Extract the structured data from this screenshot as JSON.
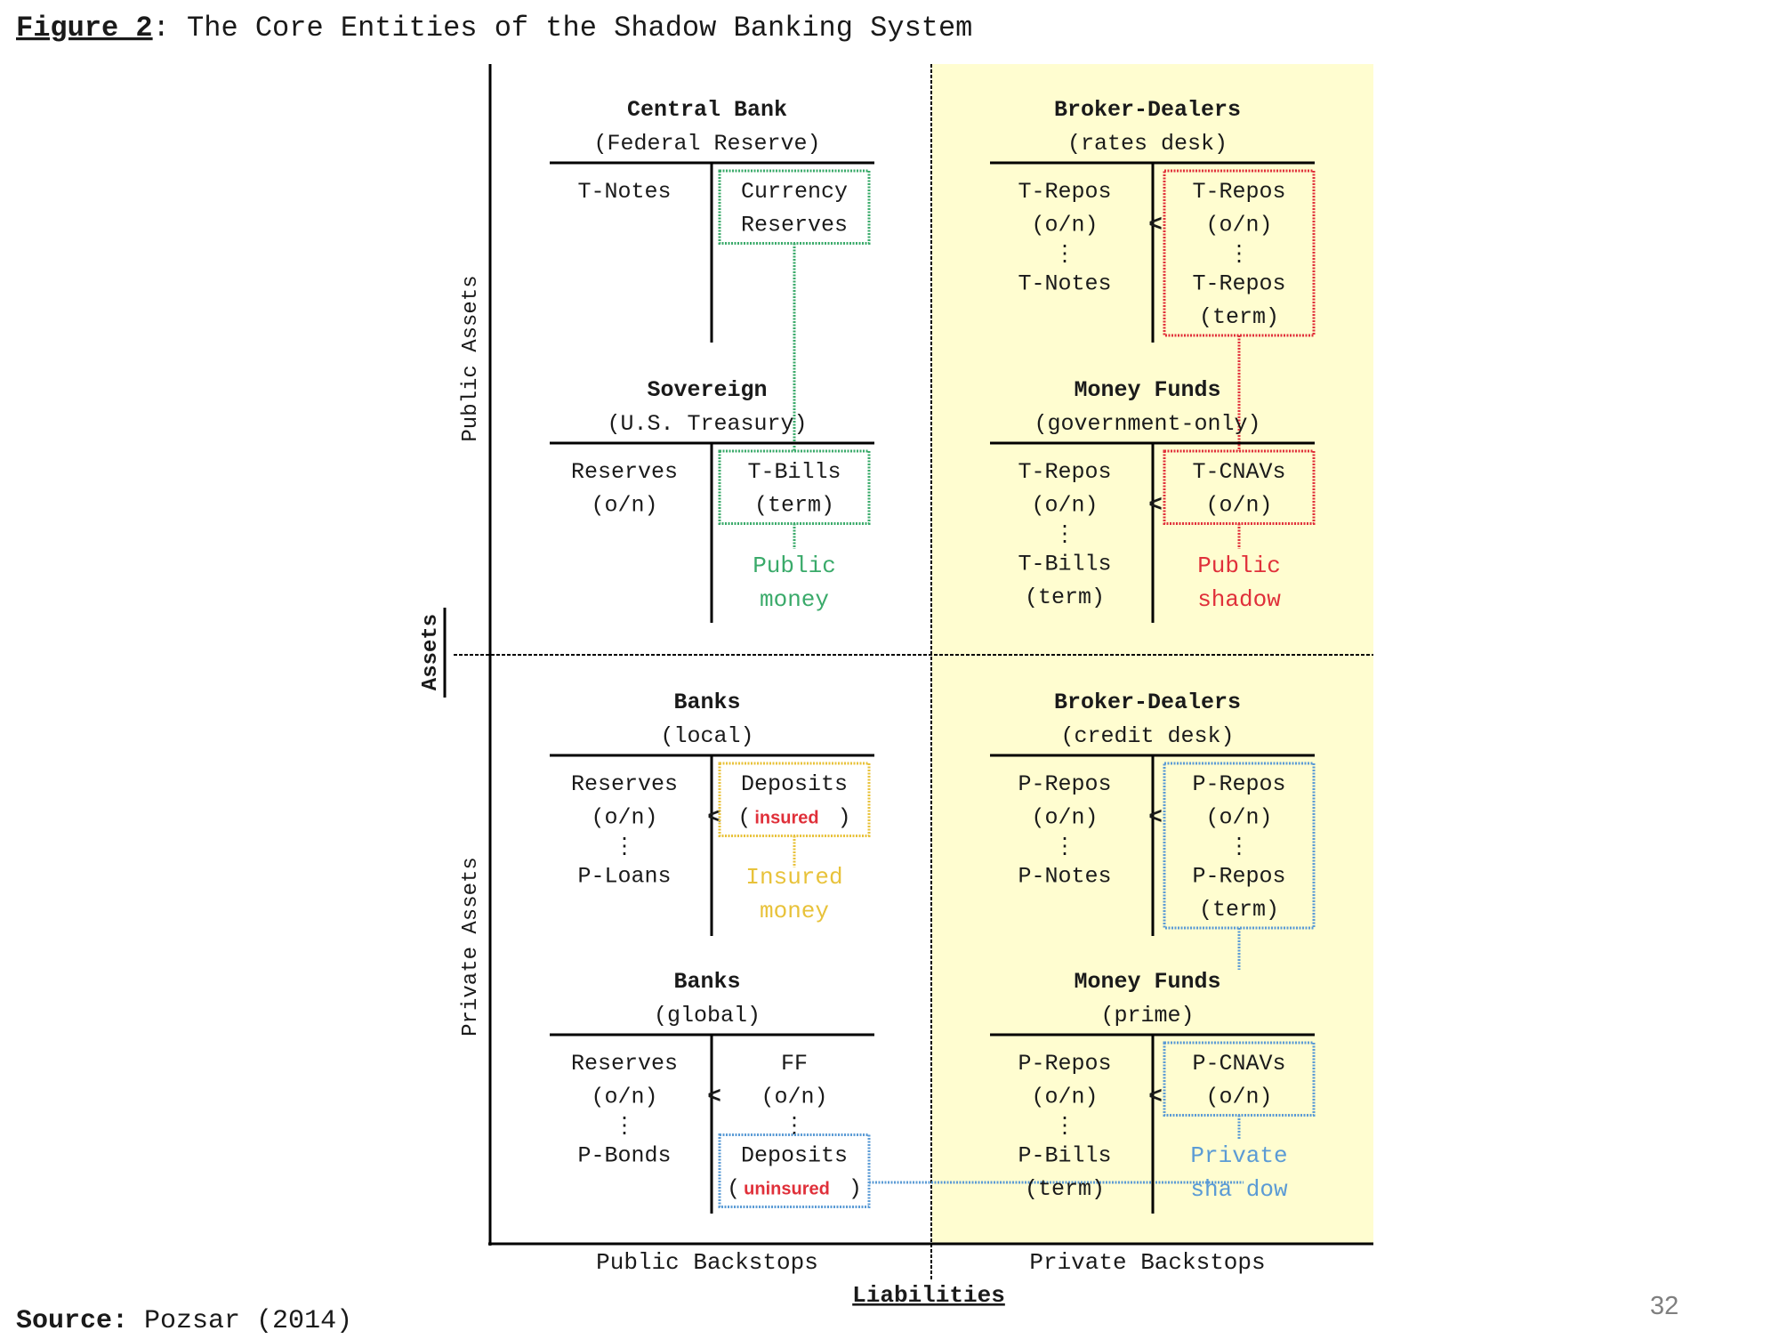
{
  "title": {
    "label": "Figure 2",
    "text": ": The Core Entities of the Shadow Banking System"
  },
  "source": {
    "label": "Source:",
    "text": " Pozsar (2014)"
  },
  "slide_number": "32",
  "axes": {
    "assets": "Assets",
    "liabilities": "Liabilities",
    "public_assets": "Public Assets",
    "private_assets": "Private Assets",
    "public_backstops": "Public Backstops",
    "private_backstops": "Private Backstops"
  },
  "colors": {
    "green": "#3aaa6a",
    "red": "#e0303a",
    "yellow": "#e8c23a",
    "blue": "#5b9bd5",
    "shade": "#fffdd0",
    "text": "#1a1a1a"
  },
  "entities": {
    "central_bank": {
      "name": "Central Bank",
      "sub": "(Federal Reserve)",
      "assets": [
        "T-Notes"
      ],
      "liabilities": [
        "Currency",
        "Reserves"
      ]
    },
    "bd_rates": {
      "name": "Broker-Dealers",
      "sub": "(rates desk)",
      "assets": [
        "T-Repos",
        "(o/n)",
        "⋮",
        "T-Notes"
      ],
      "liabilities": [
        "T-Repos",
        "(o/n)",
        "⋮",
        "T-Repos",
        "(term)"
      ],
      "lt": "<"
    },
    "sovereign": {
      "name": "Sovereign",
      "sub": "(U.S. Treasury)",
      "assets": [
        "Reserves",
        "(o/n)"
      ],
      "liabilities": [
        "T-Bills",
        "(term)"
      ],
      "label": [
        "Public",
        "money"
      ]
    },
    "mf_gov": {
      "name": "Money Funds",
      "sub": "(government-only)",
      "assets": [
        "T-Repos",
        "(o/n)",
        "⋮",
        "T-Bills",
        "(term)"
      ],
      "liabilities": [
        "T-CNAVs",
        "(o/n)"
      ],
      "label": [
        "Public",
        "shadow"
      ],
      "lt": "<"
    },
    "banks_local": {
      "name": "Banks",
      "sub": "(local)",
      "assets": [
        "Reserves",
        "(o/n)",
        "⋮",
        "P-Loans"
      ],
      "liabilities": [
        "Deposits"
      ],
      "paren_open": "(",
      "paren_close": ")",
      "tag": "insured",
      "label": [
        "Insured",
        "money"
      ],
      "lt": "<"
    },
    "bd_credit": {
      "name": "Broker-Dealers",
      "sub": "(credit desk)",
      "assets": [
        "P-Repos",
        "(o/n)",
        "⋮",
        "P-Notes"
      ],
      "liabilities": [
        "P-Repos",
        "(o/n)",
        "⋮",
        "P-Repos",
        "(term)"
      ],
      "lt": "<"
    },
    "banks_global": {
      "name": "Banks",
      "sub": "(global)",
      "assets": [
        "Reserves",
        "(o/n)",
        "⋮",
        "P-Bonds"
      ],
      "liabilities": [
        "FF",
        "(o/n)",
        "⋮",
        "Deposits"
      ],
      "paren_open": "(",
      "paren_close": ")",
      "tag": "uninsured",
      "lt": "<"
    },
    "mf_prime": {
      "name": "Money Funds",
      "sub": "(prime)",
      "assets": [
        "P-Repos",
        "(o/n)",
        "⋮",
        "P-Bills",
        "(term)"
      ],
      "liabilities": [
        "P-CNAVs",
        "(o/n)"
      ],
      "label": [
        "Private",
        "sha dow"
      ],
      "lt": "<"
    }
  }
}
